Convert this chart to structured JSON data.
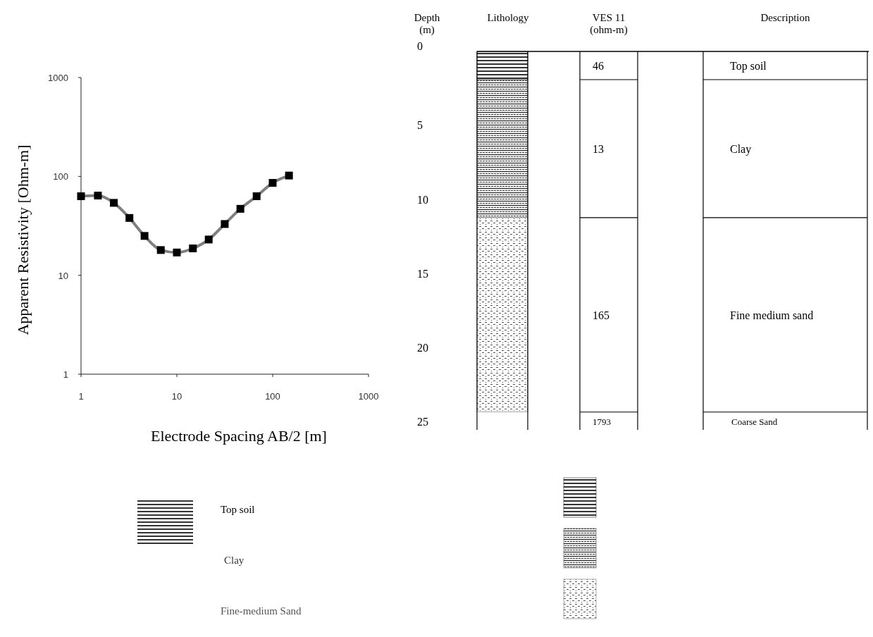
{
  "chart_data": [
    {
      "type": "line",
      "xlabel": "Electrode Spacing AB/2 [m]",
      "ylabel": "Apparent Resistivity [Ohm-m]",
      "log": "xy",
      "grid": false,
      "legend": false,
      "marker": "square",
      "line_style": "solid",
      "xlim": [
        1,
        1000
      ],
      "xticks": [
        1,
        10,
        100,
        1000
      ],
      "ylim": [
        1,
        1000
      ],
      "yticks": [
        1,
        10,
        100,
        1000
      ],
      "series": [
        {
          "color": "#808080",
          "x": [
            1,
            1.5,
            2.2,
            3.2,
            4.6,
            6.8,
            10,
            14.7,
            21.5,
            31.6,
            46,
            68,
            100,
            148
          ],
          "values": [
            63,
            64,
            54,
            38,
            25,
            18,
            17,
            18.7,
            23,
            33,
            47,
            63,
            86,
            102
          ]
        }
      ]
    },
    {
      "type": "bar",
      "stacked": true,
      "legend": "bottom",
      "ylabel": "Depth\n(m)",
      "categories": [
        "Lithology",
        "VES 11\n(ohm-m)",
        "Description"
      ],
      "ylim": [
        25.5,
        0
      ],
      "yticks": [
        0,
        5,
        10,
        15,
        20,
        25
      ],
      "series": [
        {
          "name": "Top soil",
          "color": "#000000",
          "values": [
            1.9,
            null,
            null
          ]
        },
        {
          "name": "Clay",
          "color": "#333333",
          "values": [
            9.3,
            null,
            null
          ]
        },
        {
          "name": "Fine-medium Sand",
          "color": "#555555",
          "values": [
            13.1,
            null,
            null
          ]
        }
      ],
      "ref_lines": [
        {
          "axis": "y",
          "value": 1.9
        },
        {
          "axis": "y",
          "value": 11.2
        },
        {
          "axis": "y",
          "value": 24.3
        }
      ],
      "annotations": [
        "46",
        "13",
        "165",
        "1793",
        "Top soil",
        "Clay",
        "Fine medium sand",
        "Coarse Sand"
      ]
    }
  ]
}
